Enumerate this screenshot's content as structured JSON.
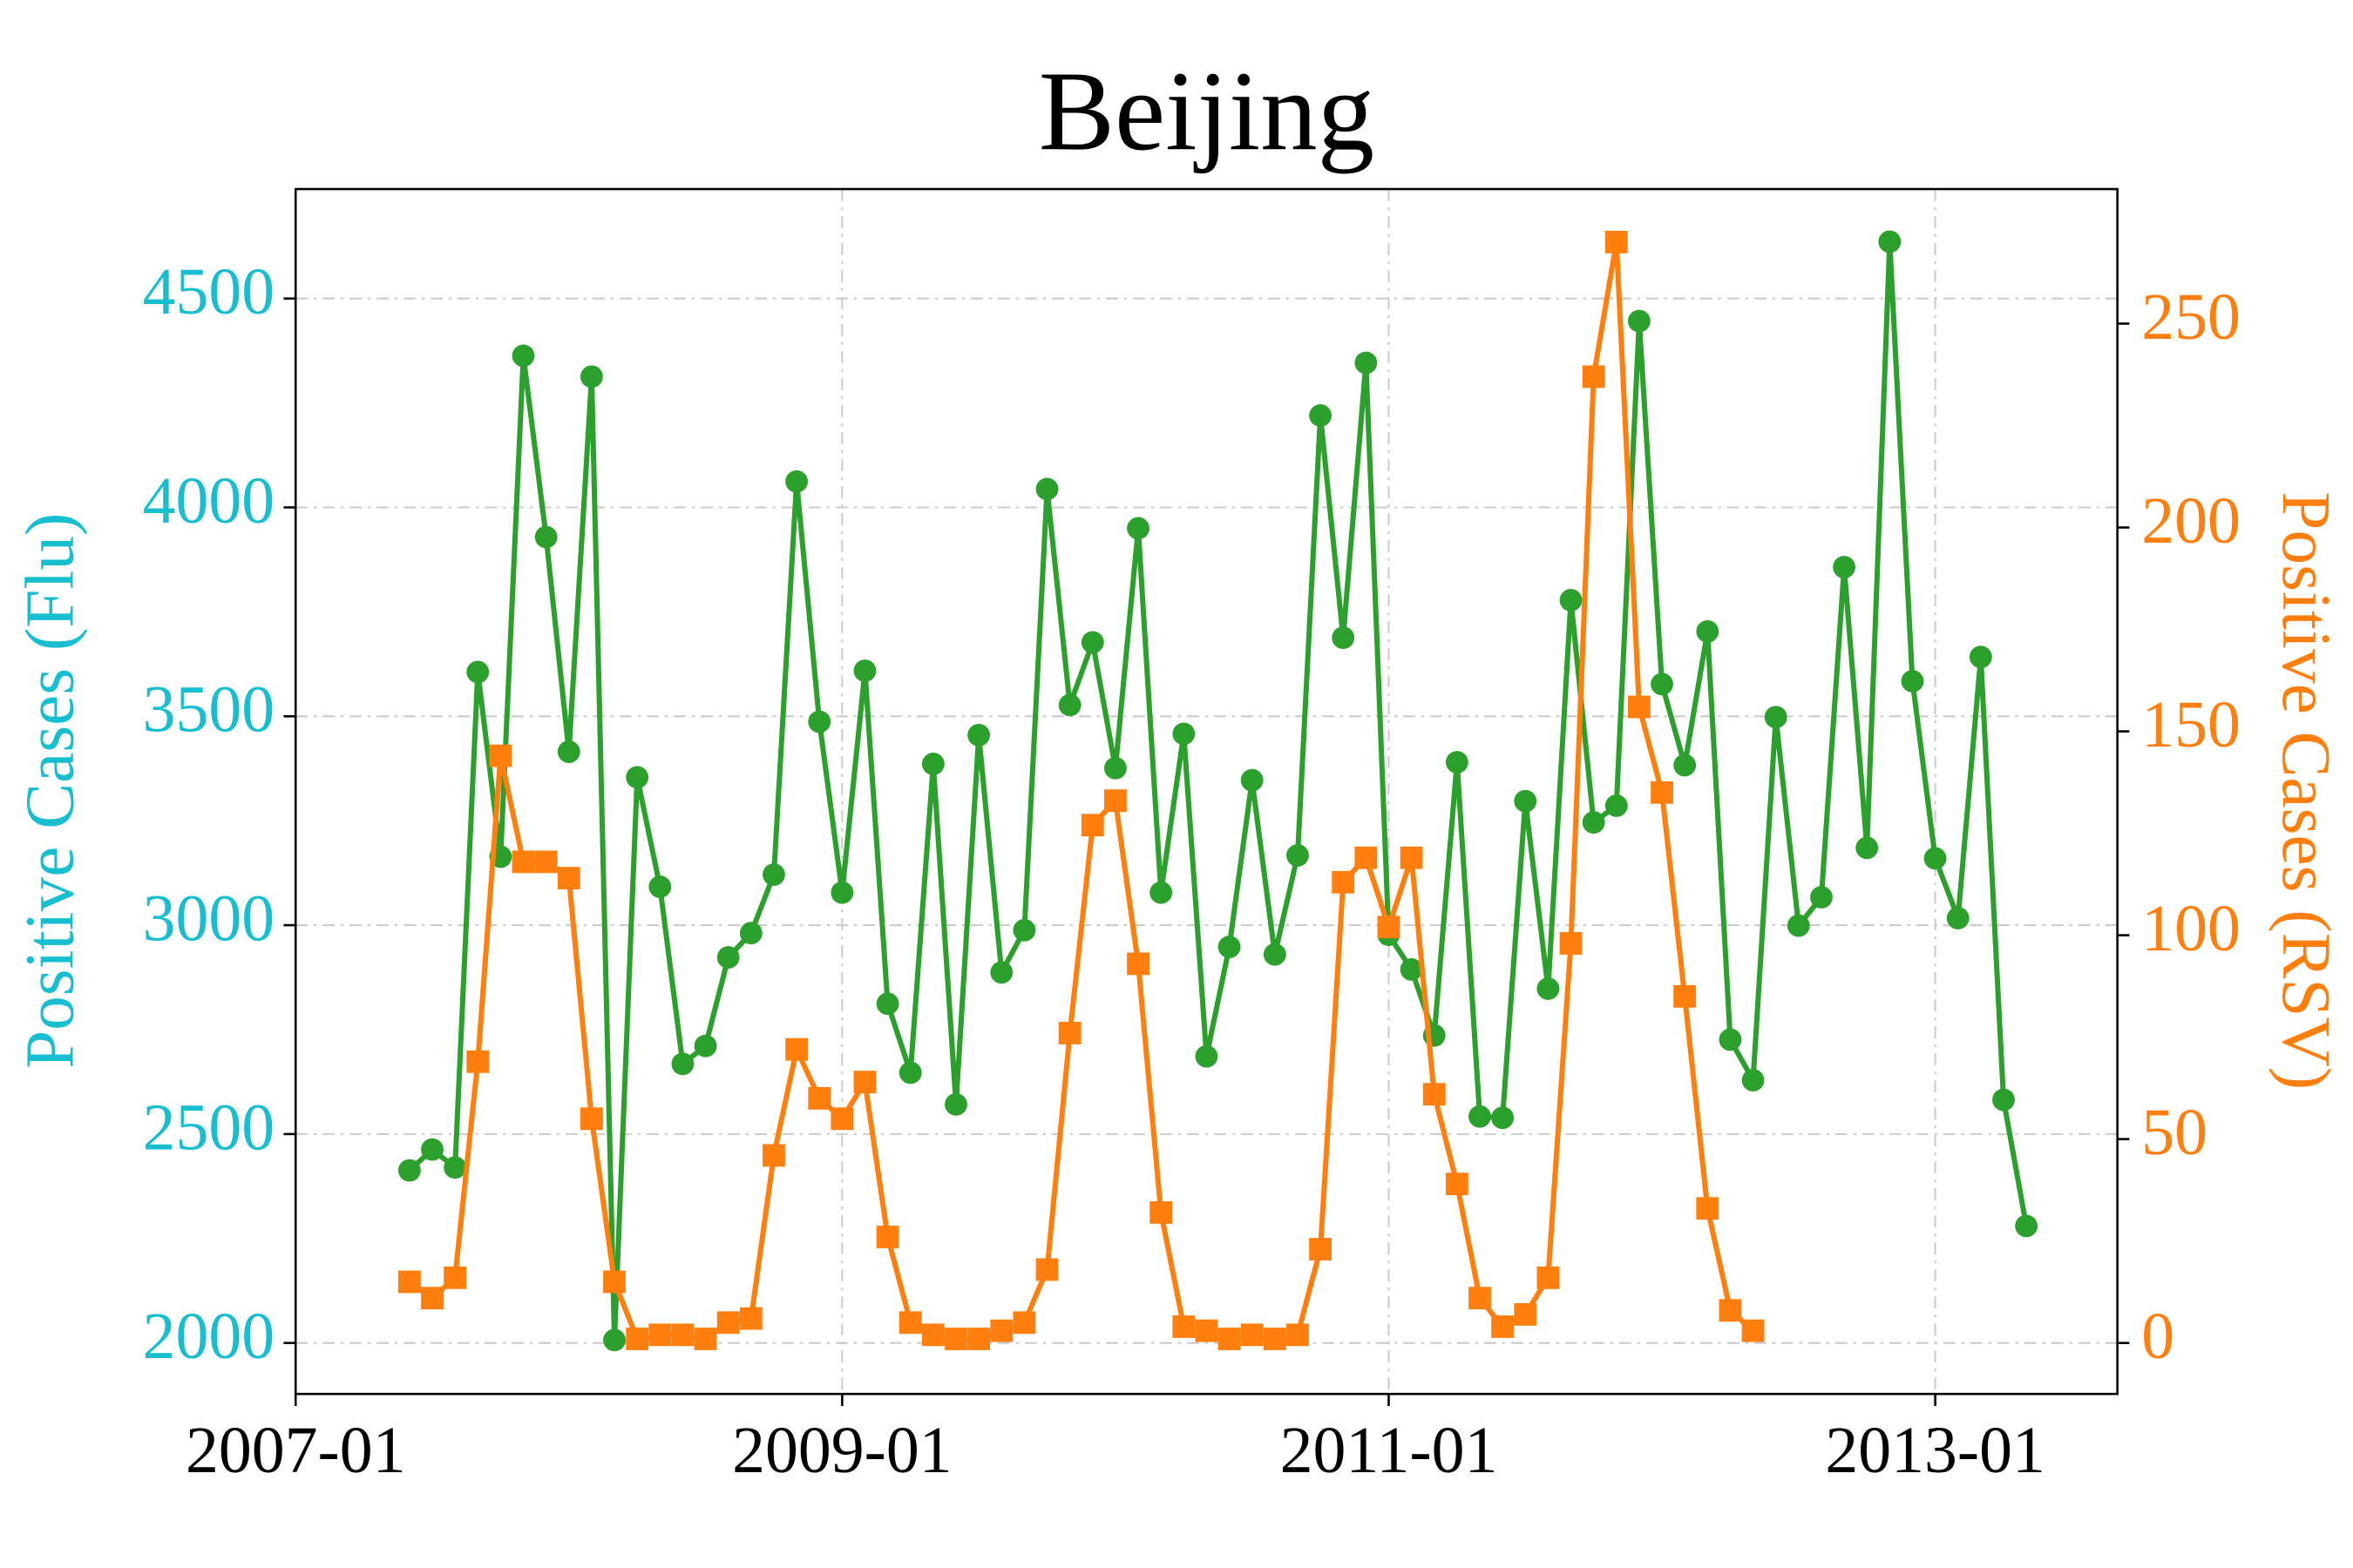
{
  "chart_data": {
    "type": "line",
    "title": "Beijing",
    "y_label": "Positive Cases (Flu)",
    "y2_label": "Positive Cases (RSV)",
    "y_label_color": "#17becf",
    "y2_label_color": "#ff7f0e",
    "x": [
      "2007-06",
      "2007-07",
      "2007-08",
      "2007-09",
      "2007-10",
      "2007-11",
      "2007-12",
      "2008-01",
      "2008-02",
      "2008-03",
      "2008-04",
      "2008-05",
      "2008-06",
      "2008-07",
      "2008-08",
      "2008-09",
      "2008-10",
      "2008-11",
      "2008-12",
      "2009-01",
      "2009-02",
      "2009-03",
      "2009-04",
      "2009-05",
      "2009-06",
      "2009-07",
      "2009-08",
      "2009-09",
      "2009-10",
      "2009-11",
      "2009-12",
      "2010-01",
      "2010-02",
      "2010-03",
      "2010-04",
      "2010-05",
      "2010-06",
      "2010-07",
      "2010-08",
      "2010-09",
      "2010-10",
      "2010-11",
      "2010-12",
      "2011-01",
      "2011-02",
      "2011-03",
      "2011-04",
      "2011-05",
      "2011-06",
      "2011-07",
      "2011-08",
      "2011-09",
      "2011-10",
      "2011-11",
      "2011-12",
      "2012-01",
      "2012-02",
      "2012-03",
      "2012-04",
      "2012-05",
      "2012-06",
      "2012-07",
      "2012-08",
      "2012-09",
      "2012-10",
      "2012-11",
      "2012-12",
      "2013-01",
      "2013-02",
      "2013-03",
      "2013-04",
      "2013-05"
    ],
    "series": [
      {
        "name": "Flu",
        "color": "#2ca02c",
        "marker": "circle",
        "axis": "y",
        "values": [
          2413,
          2463,
          2420,
          3606,
          3164,
          4363,
          3929,
          3415,
          4313,
          2007,
          3354,
          3092,
          2668,
          2711,
          2923,
          2981,
          3121,
          4062,
          3487,
          3078,
          3609,
          2812,
          2647,
          3386,
          2571,
          3455,
          2887,
          2988,
          4044,
          3527,
          3677,
          3376,
          3950,
          3078,
          3458,
          2686,
          2948,
          3347,
          2930,
          3167,
          4220,
          3688,
          4346,
          2977,
          2894,
          2736,
          3390,
          2542,
          2539,
          3297,
          2848,
          3778,
          3246,
          3286,
          4446,
          3577,
          3383,
          3703,
          2726,
          2629,
          3498,
          2999,
          3067,
          3857,
          3185,
          4636,
          3584,
          3160,
          3017,
          3642,
          2582,
          2280
        ]
      },
      {
        "name": "RSV",
        "color": "#ff7f0e",
        "marker": "square",
        "axis": "y2",
        "values": [
          15,
          11,
          16,
          69,
          144,
          118,
          118,
          114,
          55,
          15,
          1,
          2,
          2,
          1,
          5,
          6,
          46,
          72,
          60,
          55,
          64,
          26,
          5,
          2,
          1,
          1,
          3,
          5,
          18,
          76,
          127,
          133,
          93,
          32,
          4,
          3,
          1,
          2,
          1,
          2,
          23,
          113,
          119,
          102,
          119,
          61,
          39,
          11,
          4,
          7,
          16,
          98,
          237,
          270,
          156,
          135,
          85,
          33,
          8,
          3,
          null,
          null,
          null,
          null,
          null,
          null,
          null,
          null,
          null,
          null,
          null,
          null
        ]
      }
    ],
    "xlim": [
      "2007-01",
      "2013-09"
    ],
    "xticks": [
      "2007-01",
      "2009-01",
      "2011-01",
      "2013-01"
    ],
    "ylim": [
      1878,
      4762
    ],
    "yticks": [
      2000,
      2500,
      3000,
      3500,
      4000,
      4500
    ],
    "y2lim": [
      -12.5,
      283
    ],
    "y2ticks": [
      0,
      50,
      100,
      150,
      200,
      250
    ],
    "grid": true
  }
}
